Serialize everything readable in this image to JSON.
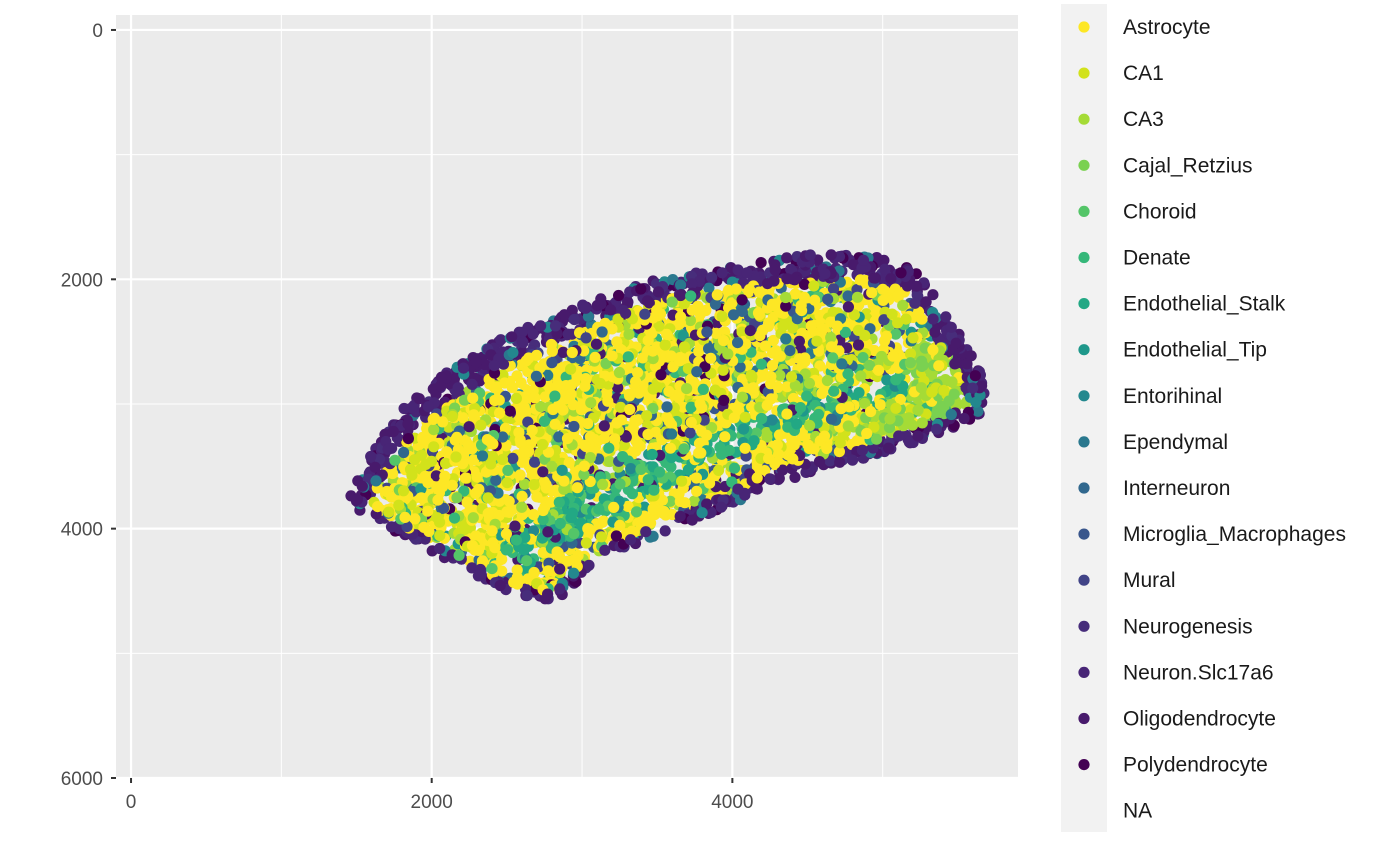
{
  "chart_data": {
    "type": "scatter",
    "title": "",
    "xlabel": "",
    "ylabel": "",
    "xlim": [
      -100,
      5900
    ],
    "ylim": [
      6000,
      -120
    ],
    "y_reversed": true,
    "x_ticks": [
      0,
      2000,
      4000
    ],
    "y_ticks": [
      0,
      2000,
      4000,
      6000
    ],
    "grid": true,
    "legend_position": "right",
    "legend": [
      {
        "name": "Astrocyte",
        "color": "#FDE725"
      },
      {
        "name": "CA1",
        "color": "#D2E21B"
      },
      {
        "name": "CA3",
        "color": "#A5DB36"
      },
      {
        "name": "Cajal_Retzius",
        "color": "#7AD151"
      },
      {
        "name": "Choroid",
        "color": "#54C568"
      },
      {
        "name": "Denate",
        "color": "#35B779"
      },
      {
        "name": "Endothelial_Stalk",
        "color": "#22A884"
      },
      {
        "name": "Endothelial_Tip",
        "color": "#1F988B"
      },
      {
        "name": "Entorihinal",
        "color": "#23888E"
      },
      {
        "name": "Ependymal",
        "color": "#2A788E"
      },
      {
        "name": "Interneuron",
        "color": "#31688E"
      },
      {
        "name": "Microglia_Macrophages",
        "color": "#39568C"
      },
      {
        "name": "Mural",
        "color": "#414487"
      },
      {
        "name": "Neurogenesis",
        "color": "#472D7B"
      },
      {
        "name": "Neuron.Slc17a6",
        "color": "#482576"
      },
      {
        "name": "Oligodendrocyte",
        "color": "#481A6C"
      },
      {
        "name": "Polydendrocyte",
        "color": "#440154"
      },
      {
        "name": "NA",
        "color": ""
      }
    ],
    "tissue_region": {
      "outer_boundary": [
        [
          1450,
          3750
        ],
        [
          1600,
          3400
        ],
        [
          1800,
          3050
        ],
        [
          2100,
          2750
        ],
        [
          2500,
          2450
        ],
        [
          3000,
          2200
        ],
        [
          3500,
          2000
        ],
        [
          4000,
          1900
        ],
        [
          4500,
          1800
        ],
        [
          4900,
          1800
        ],
        [
          5200,
          1900
        ],
        [
          5450,
          2300
        ],
        [
          5650,
          2750
        ],
        [
          5700,
          3050
        ],
        [
          5450,
          3200
        ],
        [
          5000,
          3400
        ],
        [
          4500,
          3550
        ],
        [
          4000,
          3800
        ],
        [
          3500,
          4050
        ],
        [
          3100,
          4300
        ],
        [
          2800,
          4600
        ],
        [
          2500,
          4500
        ],
        [
          2100,
          4250
        ],
        [
          1800,
          4050
        ],
        [
          1500,
          3850
        ]
      ],
      "inner_boundary": [
        [
          1620,
          3700
        ],
        [
          1800,
          3350
        ],
        [
          2000,
          3080
        ],
        [
          2300,
          2830
        ],
        [
          2700,
          2560
        ],
        [
          3150,
          2340
        ],
        [
          3600,
          2150
        ],
        [
          4100,
          2060
        ],
        [
          4550,
          1980
        ],
        [
          4900,
          2000
        ],
        [
          5150,
          2100
        ],
        [
          5350,
          2450
        ],
        [
          5520,
          2780
        ],
        [
          5580,
          3000
        ],
        [
          5300,
          3140
        ],
        [
          4900,
          3320
        ],
        [
          4450,
          3470
        ],
        [
          3950,
          3720
        ],
        [
          3450,
          3970
        ],
        [
          3050,
          4230
        ],
        [
          2780,
          4520
        ],
        [
          2480,
          4420
        ],
        [
          2100,
          4180
        ],
        [
          1820,
          3980
        ],
        [
          1600,
          3800
        ]
      ],
      "dentate_band": [
        [
          2450,
          4200
        ],
        [
          2800,
          3800
        ],
        [
          3200,
          3500
        ],
        [
          3700,
          3300
        ],
        [
          4200,
          3050
        ],
        [
          4700,
          2850
        ],
        [
          5100,
          2780
        ],
        [
          5200,
          2950
        ],
        [
          4800,
          3050
        ],
        [
          4300,
          3250
        ],
        [
          3800,
          3500
        ],
        [
          3300,
          3800
        ],
        [
          2900,
          4100
        ],
        [
          2600,
          4380
        ]
      ],
      "ca_band_right": [
        [
          5250,
          2500
        ],
        [
          5500,
          2600
        ],
        [
          5650,
          2950
        ],
        [
          5400,
          3150
        ],
        [
          5000,
          3300
        ],
        [
          4600,
          3250
        ],
        [
          5000,
          3050
        ]
      ]
    }
  }
}
